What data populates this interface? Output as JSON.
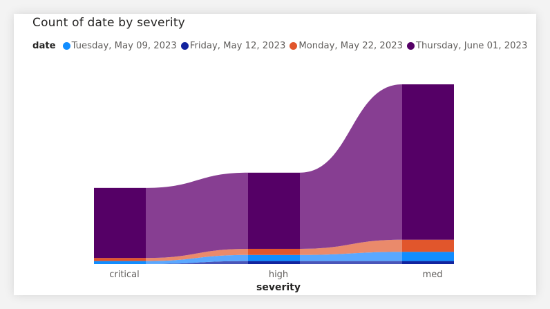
{
  "chart_data": {
    "type": "area",
    "subtype": "ribbon-stacked-column",
    "title": "Count of date by severity",
    "xlabel": "severity",
    "ylabel": "",
    "legend_title": "date",
    "legend_position": "top-left",
    "categories": [
      "critical",
      "high",
      "med"
    ],
    "series": [
      {
        "name": "Tuesday, May 09, 2023",
        "color": "#118DFF",
        "ribbon_color": "#5AA8FF",
        "values": [
          1,
          2,
          3
        ]
      },
      {
        "name": "Friday, May 12, 2023",
        "color": "#12239E",
        "ribbon_color": "#4A55B8",
        "values": [
          0,
          1,
          1
        ]
      },
      {
        "name": "Monday, May 22, 2023",
        "color": "#E1562C",
        "ribbon_color": "#EA8A6B",
        "values": [
          1,
          2,
          4
        ]
      },
      {
        "name": "Thursday, June 01, 2023",
        "color": "#550066",
        "ribbon_color": "#873E92",
        "values": [
          23,
          25,
          51
        ]
      }
    ],
    "stack_order_bottom_to_top": [
      "Friday, May 12, 2023",
      "Tuesday, May 09, 2023",
      "Monday, May 22, 2023",
      "Thursday, June 01, 2023"
    ],
    "ylim": [
      0,
      60
    ],
    "grid": false,
    "y_axis_visible": false
  }
}
